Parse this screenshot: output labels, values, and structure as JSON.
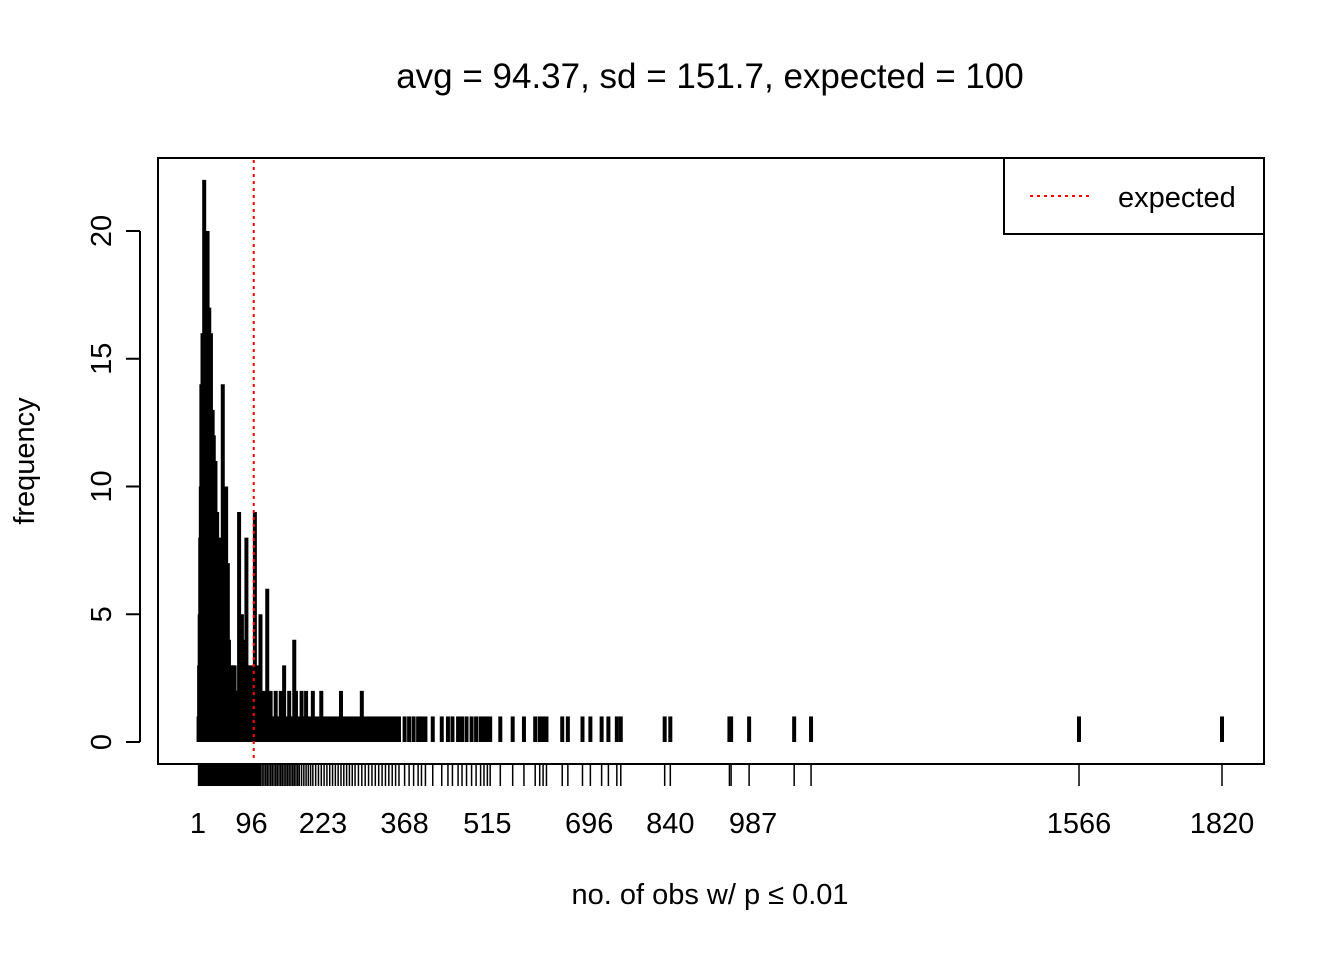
{
  "chart_data": {
    "type": "bar",
    "title": "avg = 94.37, sd = 151.7, expected = 100",
    "xlabel": "no. of obs w/ p ≤ 0.01",
    "ylabel": "frequency",
    "xlim": [
      -40,
      1820
    ],
    "ylim": [
      0,
      22
    ],
    "x_tick_labels": [
      1,
      96,
      223,
      368,
      515,
      696,
      840,
      987,
      1566,
      1820
    ],
    "y_ticks": [
      0,
      5,
      10,
      15,
      20
    ],
    "grid": false,
    "legend": {
      "position": "top-right",
      "entries": [
        {
          "label": "expected",
          "color": "#ff0000",
          "style": "dotted"
        }
      ]
    },
    "expected_line": {
      "x": 100,
      "color": "#ff0000",
      "style": "dotted"
    },
    "series": [
      {
        "color": "#000000",
        "points": [
          [
            2,
            1
          ],
          [
            3,
            3
          ],
          [
            4,
            5
          ],
          [
            5,
            8
          ],
          [
            6,
            10
          ],
          [
            7,
            14
          ],
          [
            8,
            12
          ],
          [
            9,
            16
          ],
          [
            10,
            11
          ],
          [
            11,
            9
          ],
          [
            12,
            22
          ],
          [
            13,
            13
          ],
          [
            14,
            16
          ],
          [
            15,
            20
          ],
          [
            16,
            12
          ],
          [
            17,
            15
          ],
          [
            18,
            20
          ],
          [
            19,
            10
          ],
          [
            20,
            13
          ],
          [
            21,
            17
          ],
          [
            22,
            11
          ],
          [
            23,
            9
          ],
          [
            24,
            16
          ],
          [
            25,
            12
          ],
          [
            26,
            8
          ],
          [
            27,
            13
          ],
          [
            28,
            10
          ],
          [
            29,
            12
          ],
          [
            30,
            7
          ],
          [
            31,
            9
          ],
          [
            32,
            11
          ],
          [
            33,
            6
          ],
          [
            34,
            8
          ],
          [
            35,
            9
          ],
          [
            36,
            5
          ],
          [
            37,
            7
          ],
          [
            38,
            6
          ],
          [
            39,
            4
          ],
          [
            40,
            8
          ],
          [
            41,
            5
          ],
          [
            42,
            6
          ],
          [
            43,
            3
          ],
          [
            44,
            4
          ],
          [
            45,
            14
          ],
          [
            46,
            5
          ],
          [
            47,
            3
          ],
          [
            48,
            7
          ],
          [
            49,
            4
          ],
          [
            50,
            2
          ],
          [
            51,
            10
          ],
          [
            52,
            3
          ],
          [
            53,
            2
          ],
          [
            54,
            7
          ],
          [
            55,
            3
          ],
          [
            56,
            4
          ],
          [
            57,
            1
          ],
          [
            58,
            2
          ],
          [
            59,
            3
          ],
          [
            60,
            1
          ],
          [
            61,
            2
          ],
          [
            62,
            3
          ],
          [
            63,
            1
          ],
          [
            64,
            2
          ],
          [
            65,
            1
          ],
          [
            66,
            3
          ],
          [
            67,
            1
          ],
          [
            68,
            2
          ],
          [
            69,
            1
          ],
          [
            70,
            1
          ],
          [
            71,
            2
          ],
          [
            72,
            1
          ],
          [
            73,
            1
          ],
          [
            74,
            9
          ],
          [
            75,
            1
          ],
          [
            76,
            2
          ],
          [
            77,
            3
          ],
          [
            78,
            1
          ],
          [
            79,
            5
          ],
          [
            80,
            2
          ],
          [
            81,
            1
          ],
          [
            82,
            4
          ],
          [
            83,
            2
          ],
          [
            84,
            1
          ],
          [
            85,
            1
          ],
          [
            86,
            2
          ],
          [
            87,
            8
          ],
          [
            88,
            1
          ],
          [
            89,
            3
          ],
          [
            90,
            1
          ],
          [
            91,
            2
          ],
          [
            92,
            1
          ],
          [
            94,
            1
          ],
          [
            95,
            3
          ],
          [
            96,
            2
          ],
          [
            97,
            1
          ],
          [
            99,
            2
          ],
          [
            101,
            1
          ],
          [
            102,
            9
          ],
          [
            104,
            1
          ],
          [
            106,
            3
          ],
          [
            108,
            1
          ],
          [
            110,
            2
          ],
          [
            112,
            5
          ],
          [
            115,
            1
          ],
          [
            118,
            2
          ],
          [
            121,
            1
          ],
          [
            124,
            6
          ],
          [
            127,
            1
          ],
          [
            130,
            2
          ],
          [
            133,
            1
          ],
          [
            136,
            1
          ],
          [
            139,
            2
          ],
          [
            142,
            1
          ],
          [
            145,
            1
          ],
          [
            148,
            2
          ],
          [
            151,
            1
          ],
          [
            154,
            3
          ],
          [
            157,
            1
          ],
          [
            160,
            1
          ],
          [
            163,
            2
          ],
          [
            166,
            1
          ],
          [
            169,
            1
          ],
          [
            172,
            4
          ],
          [
            175,
            2
          ],
          [
            178,
            1
          ],
          [
            181,
            1
          ],
          [
            185,
            2
          ],
          [
            189,
            1
          ],
          [
            193,
            2
          ],
          [
            197,
            1
          ],
          [
            201,
            1
          ],
          [
            205,
            2
          ],
          [
            210,
            1
          ],
          [
            215,
            1
          ],
          [
            220,
            2
          ],
          [
            225,
            1
          ],
          [
            230,
            1
          ],
          [
            235,
            1
          ],
          [
            240,
            1
          ],
          [
            245,
            1
          ],
          [
            250,
            1
          ],
          [
            255,
            2
          ],
          [
            260,
            1
          ],
          [
            265,
            1
          ],
          [
            270,
            1
          ],
          [
            275,
            1
          ],
          [
            280,
            1
          ],
          [
            286,
            1
          ],
          [
            292,
            2
          ],
          [
            298,
            1
          ],
          [
            304,
            1
          ],
          [
            310,
            1
          ],
          [
            316,
            1
          ],
          [
            322,
            1
          ],
          [
            328,
            1
          ],
          [
            334,
            1
          ],
          [
            340,
            1
          ],
          [
            346,
            1
          ],
          [
            352,
            1
          ],
          [
            358,
            1
          ],
          [
            368,
            1
          ],
          [
            376,
            1
          ],
          [
            384,
            1
          ],
          [
            392,
            1
          ],
          [
            398,
            1
          ],
          [
            405,
            1
          ],
          [
            418,
            1
          ],
          [
            434,
            1
          ],
          [
            445,
            1
          ],
          [
            453,
            1
          ],
          [
            463,
            1
          ],
          [
            470,
            1
          ],
          [
            478,
            1
          ],
          [
            487,
            1
          ],
          [
            495,
            1
          ],
          [
            503,
            1
          ],
          [
            509,
            1
          ],
          [
            515,
            1
          ],
          [
            520,
            1
          ],
          [
            538,
            1
          ],
          [
            560,
            1
          ],
          [
            580,
            1
          ],
          [
            600,
            1
          ],
          [
            608,
            1
          ],
          [
            614,
            1
          ],
          [
            620,
            1
          ],
          [
            648,
            1
          ],
          [
            658,
            1
          ],
          [
            684,
            1
          ],
          [
            698,
            1
          ],
          [
            718,
            1
          ],
          [
            730,
            1
          ],
          [
            745,
            1
          ],
          [
            752,
            1
          ],
          [
            830,
            1
          ],
          [
            840,
            1
          ],
          [
            945,
            1
          ],
          [
            948,
            1
          ],
          [
            980,
            1
          ],
          [
            1060,
            1
          ],
          [
            1090,
            1
          ],
          [
            1566,
            1
          ],
          [
            1820,
            1
          ]
        ]
      }
    ]
  }
}
